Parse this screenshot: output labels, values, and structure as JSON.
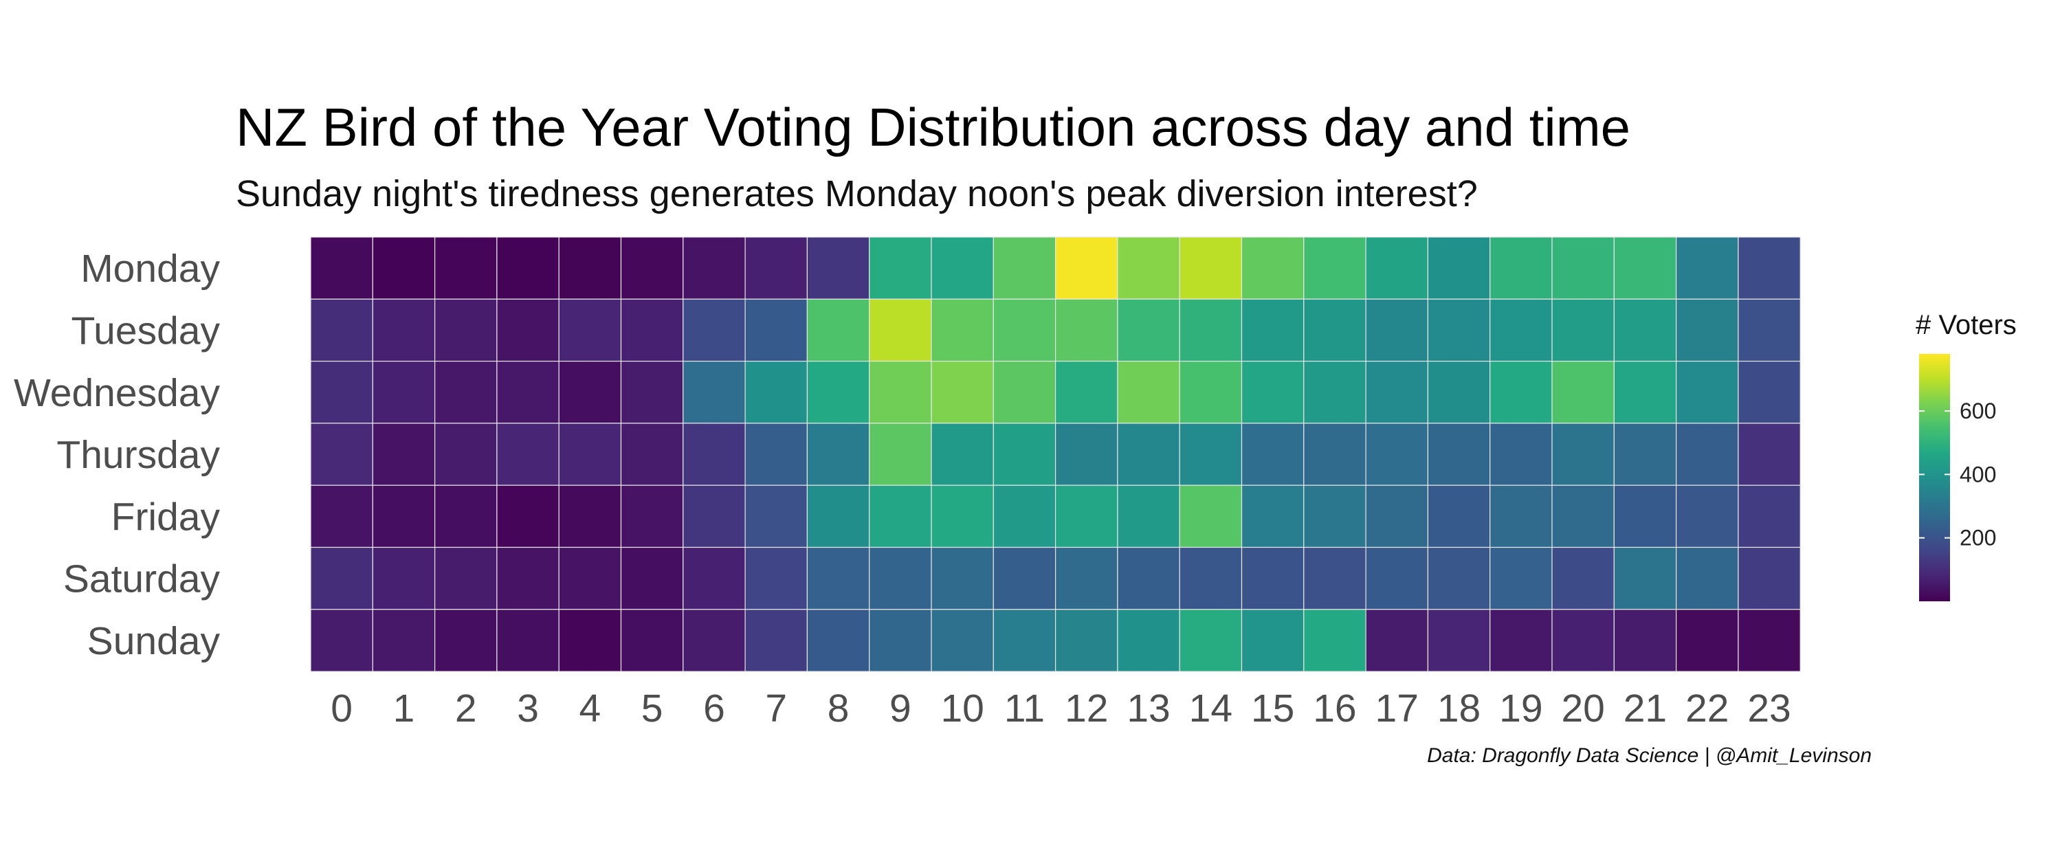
{
  "chart_data": {
    "type": "heatmap",
    "title": "NZ Bird of the Year Voting Distribution across day and time",
    "subtitle": "Sunday night's tiredness generates Monday noon's peak diversion interest?",
    "caption": "Data: Dragonfly Data Science | @Amit_Levinson",
    "x": [
      "0",
      "1",
      "2",
      "3",
      "4",
      "5",
      "6",
      "7",
      "8",
      "9",
      "10",
      "11",
      "12",
      "13",
      "14",
      "15",
      "16",
      "17",
      "18",
      "19",
      "20",
      "21",
      "22",
      "23"
    ],
    "y": [
      "Monday",
      "Tuesday",
      "Wednesday",
      "Thursday",
      "Friday",
      "Saturday",
      "Sunday"
    ],
    "values": [
      [
        20,
        5,
        10,
        5,
        8,
        15,
        40,
        70,
        120,
        480,
        460,
        580,
        770,
        640,
        700,
        590,
        540,
        450,
        390,
        500,
        510,
        520,
        330,
        180
      ],
      [
        100,
        70,
        60,
        40,
        80,
        70,
        180,
        220,
        560,
        700,
        590,
        570,
        580,
        520,
        500,
        420,
        410,
        360,
        370,
        400,
        430,
        430,
        340,
        190
      ],
      [
        100,
        70,
        50,
        50,
        30,
        60,
        280,
        390,
        470,
        610,
        630,
        580,
        480,
        610,
        550,
        460,
        420,
        370,
        380,
        470,
        560,
        460,
        370,
        180
      ],
      [
        90,
        40,
        60,
        80,
        80,
        60,
        120,
        230,
        320,
        580,
        420,
        440,
        340,
        360,
        370,
        280,
        270,
        280,
        260,
        250,
        300,
        270,
        230,
        110
      ],
      [
        40,
        30,
        30,
        10,
        20,
        40,
        120,
        190,
        380,
        460,
        470,
        420,
        460,
        420,
        570,
        330,
        310,
        270,
        220,
        270,
        270,
        220,
        210,
        140
      ],
      [
        100,
        70,
        60,
        40,
        40,
        30,
        70,
        160,
        240,
        250,
        270,
        230,
        270,
        230,
        210,
        200,
        190,
        220,
        210,
        240,
        180,
        300,
        260,
        140
      ],
      [
        60,
        50,
        30,
        30,
        10,
        30,
        60,
        140,
        220,
        260,
        290,
        330,
        350,
        390,
        480,
        400,
        470,
        60,
        80,
        50,
        70,
        60,
        20,
        20
      ]
    ],
    "colorscale": "viridis",
    "colors": {
      "low": "#440154",
      "mid": "#21918c",
      "high": "#fde725",
      "cell_border": "#e6e6e6"
    },
    "legend": {
      "title": "# Voters",
      "position": "right",
      "breaks": [
        "200",
        "400",
        "600"
      ],
      "range": [
        0,
        780
      ]
    },
    "grid": false
  }
}
